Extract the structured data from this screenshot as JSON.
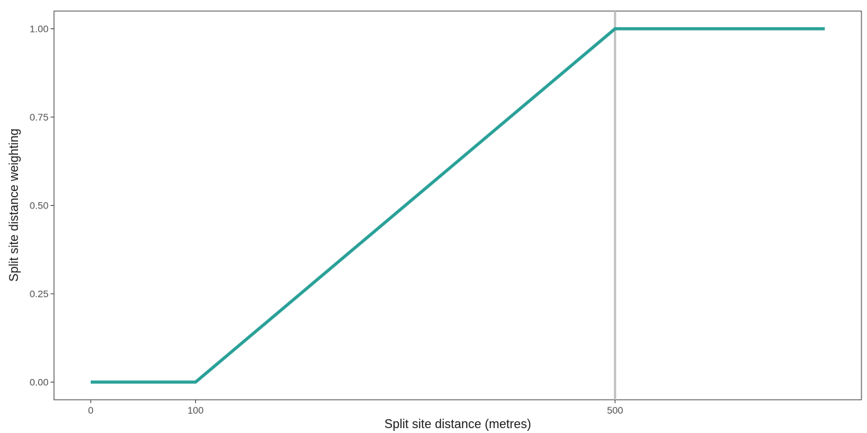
{
  "chart_data": {
    "type": "line",
    "title": "",
    "xlabel": "Split site distance (metres)",
    "ylabel": "Split site distance weighting",
    "xlim": [
      -35,
      735
    ],
    "ylim": [
      -0.05,
      1.05
    ],
    "x_ticks": [
      {
        "value": 0,
        "label": "0"
      },
      {
        "value": 100,
        "label": "100"
      },
      {
        "value": 500,
        "label": "500"
      }
    ],
    "y_ticks": [
      {
        "value": 0,
        "label": "0.00"
      },
      {
        "value": 0.25,
        "label": "0.25"
      },
      {
        "value": 0.5,
        "label": "0.50"
      },
      {
        "value": 0.75,
        "label": "0.75"
      },
      {
        "value": 1,
        "label": "1.00"
      }
    ],
    "series": [
      {
        "color": "#2aa198",
        "x": [
          0,
          100,
          500,
          700
        ],
        "y": [
          0,
          0,
          1,
          1
        ]
      }
    ],
    "reference_lines": [
      {
        "axis": "x",
        "value": 500,
        "color": "#bdbdbd"
      }
    ],
    "grid": false,
    "legend": "none"
  }
}
